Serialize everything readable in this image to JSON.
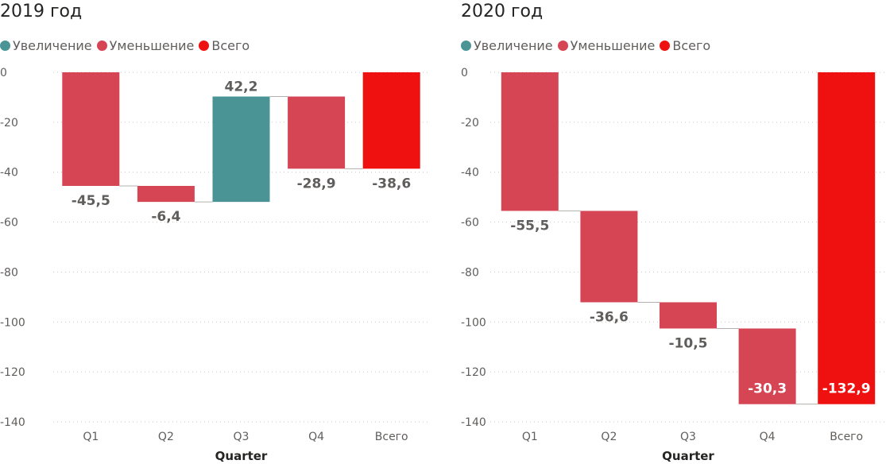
{
  "colors": {
    "increase": "#4a9496",
    "decrease": "#d64554",
    "total": "#ef1010"
  },
  "chart_data": [
    {
      "type": "waterfall",
      "title": "2019 год",
      "legend": [
        "Увеличение",
        "Уменьшение",
        "Всего"
      ],
      "legend_position": "top-left",
      "xlabel": "Quarter",
      "ylabel": "",
      "categories": [
        "Q1",
        "Q2",
        "Q3",
        "Q4",
        "Всего"
      ],
      "values": [
        -45.5,
        -6.4,
        42.2,
        -28.9,
        -38.6
      ],
      "kinds": [
        "decrease",
        "decrease",
        "increase",
        "decrease",
        "total"
      ],
      "data_labels": [
        "-45,5",
        "-6,4",
        "42,2",
        "-28,9",
        "-38,6"
      ],
      "yticks": [
        0,
        -20,
        -40,
        -60,
        -80,
        -100,
        -120,
        -140
      ],
      "ylim": [
        -140,
        0
      ],
      "grid": true
    },
    {
      "type": "waterfall",
      "title": "2020 год",
      "legend": [
        "Увеличение",
        "Уменьшение",
        "Всего"
      ],
      "legend_position": "top-left",
      "xlabel": "Quarter",
      "ylabel": "",
      "categories": [
        "Q1",
        "Q2",
        "Q3",
        "Q4",
        "Всего"
      ],
      "values": [
        -55.5,
        -36.6,
        -10.5,
        -30.3,
        -132.9
      ],
      "kinds": [
        "decrease",
        "decrease",
        "decrease",
        "decrease",
        "total"
      ],
      "data_labels": [
        "-55,5",
        "-36,6",
        "-10,5",
        "-30,3",
        "-132,9"
      ],
      "yticks": [
        0,
        -20,
        -40,
        -60,
        -80,
        -100,
        -120,
        -140
      ],
      "ylim": [
        -140,
        0
      ],
      "grid": true
    }
  ]
}
